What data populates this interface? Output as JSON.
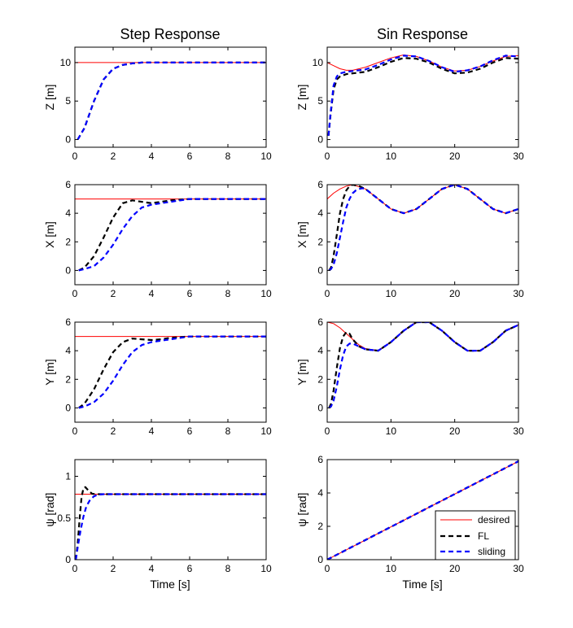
{
  "titles": {
    "left": "Step Response",
    "right": "Sin Response"
  },
  "xlabel": "Time [s]",
  "legend": [
    "desired",
    "FL",
    "sliding"
  ],
  "colors": {
    "desired": "#ff0000",
    "FL": "#000000",
    "sliding": "#0000ff"
  },
  "chart_data": [
    {
      "type": "line",
      "panel": "step-z",
      "ylabel": "Z [m]",
      "xlim": [
        0,
        10
      ],
      "ylim": [
        -1,
        12
      ],
      "xticks": [
        0,
        2,
        4,
        6,
        8,
        10
      ],
      "yticks": [
        0,
        5,
        10
      ],
      "series": [
        {
          "name": "desired",
          "style": "solid",
          "x": [
            0,
            10
          ],
          "y": [
            10,
            10
          ]
        },
        {
          "name": "FL",
          "style": "dashed",
          "x": [
            0.15,
            0.5,
            1.0,
            1.5,
            2.0,
            2.5,
            3.0,
            3.5,
            4.0,
            5.0,
            6.0,
            8.0,
            10.0
          ],
          "y": [
            0,
            1.5,
            5.0,
            7.8,
            9.2,
            9.7,
            9.9,
            10.0,
            10.0,
            10.0,
            10.0,
            10.0,
            10.0
          ]
        },
        {
          "name": "sliding",
          "style": "dashed",
          "x": [
            0.15,
            0.5,
            1.0,
            1.5,
            2.0,
            2.5,
            3.0,
            3.5,
            4.0,
            5.0,
            6.0,
            8.0,
            10.0
          ],
          "y": [
            0,
            1.5,
            5.0,
            7.8,
            9.2,
            9.7,
            9.9,
            10.0,
            10.0,
            10.0,
            10.0,
            10.0,
            10.0
          ]
        }
      ]
    },
    {
      "type": "line",
      "panel": "sin-z",
      "ylabel": "Z [m]",
      "xlim": [
        0,
        30
      ],
      "ylim": [
        -1,
        12
      ],
      "xticks": [
        0,
        10,
        20,
        30
      ],
      "yticks": [
        0,
        5,
        10
      ],
      "series": [
        {
          "name": "desired",
          "style": "solid",
          "x": [
            0,
            1,
            2,
            3,
            4,
            6,
            8,
            10,
            12,
            14,
            16,
            18,
            20,
            22,
            24,
            26,
            28,
            30
          ],
          "y": [
            10,
            9.6,
            9.2,
            9.0,
            9.0,
            9.4,
            10.0,
            10.6,
            11.0,
            10.8,
            10.2,
            9.4,
            8.9,
            9.0,
            9.5,
            10.2,
            10.8,
            10.9
          ]
        },
        {
          "name": "FL",
          "style": "dashed",
          "x": [
            0.2,
            0.5,
            1.0,
            1.5,
            2,
            3,
            4,
            6,
            8,
            10,
            12,
            14,
            16,
            18,
            20,
            22,
            24,
            26,
            28,
            30
          ],
          "y": [
            0.5,
            3.0,
            6.5,
            7.8,
            8.2,
            8.5,
            8.6,
            8.8,
            9.4,
            10.1,
            10.6,
            10.5,
            10.0,
            9.2,
            8.6,
            8.7,
            9.2,
            10.0,
            10.6,
            10.5
          ]
        },
        {
          "name": "sliding",
          "style": "dashed",
          "x": [
            0.2,
            0.5,
            1.0,
            1.5,
            2,
            3,
            4,
            6,
            8,
            10,
            12,
            14,
            16,
            18,
            20,
            22,
            24,
            26,
            28,
            30
          ],
          "y": [
            0.5,
            3.2,
            7.0,
            8.2,
            8.6,
            8.8,
            8.9,
            9.1,
            9.7,
            10.4,
            10.9,
            10.8,
            10.2,
            9.4,
            8.8,
            9.0,
            9.5,
            10.3,
            10.9,
            10.8
          ]
        }
      ]
    },
    {
      "type": "line",
      "panel": "step-x",
      "ylabel": "X [m]",
      "xlim": [
        0,
        10
      ],
      "ylim": [
        -1,
        6
      ],
      "xticks": [
        0,
        2,
        4,
        6,
        8,
        10
      ],
      "yticks": [
        0,
        2,
        4,
        6
      ],
      "series": [
        {
          "name": "desired",
          "style": "solid",
          "x": [
            0,
            10
          ],
          "y": [
            5,
            5
          ]
        },
        {
          "name": "FL",
          "style": "dashed",
          "x": [
            0.2,
            0.5,
            1.0,
            1.5,
            2.0,
            2.5,
            3.0,
            3.5,
            4.0,
            4.5,
            5.0,
            6.0,
            8.0,
            10.0
          ],
          "y": [
            0,
            0.2,
            1.0,
            2.3,
            3.7,
            4.7,
            4.9,
            4.8,
            4.7,
            4.8,
            4.9,
            5.0,
            5.0,
            5.0
          ]
        },
        {
          "name": "sliding",
          "style": "dashed",
          "x": [
            0.2,
            0.5,
            1.0,
            1.5,
            2.0,
            2.5,
            3.0,
            3.5,
            4.0,
            4.5,
            5.0,
            6.0,
            8.0,
            10.0
          ],
          "y": [
            0,
            0.1,
            0.3,
            0.9,
            1.8,
            2.9,
            3.8,
            4.4,
            4.6,
            4.7,
            4.8,
            5.0,
            5.0,
            5.0
          ]
        }
      ]
    },
    {
      "type": "line",
      "panel": "sin-x",
      "ylabel": "X [m]",
      "xlim": [
        0,
        30
      ],
      "ylim": [
        -1,
        6
      ],
      "xticks": [
        0,
        10,
        20,
        30
      ],
      "yticks": [
        0,
        2,
        4,
        6
      ],
      "series": [
        {
          "name": "desired",
          "style": "solid",
          "x": [
            0,
            1,
            2,
            3,
            4,
            6,
            8,
            10,
            12,
            14,
            16,
            18,
            20,
            22,
            24,
            26,
            28,
            30
          ],
          "y": [
            5.0,
            5.4,
            5.7,
            5.9,
            6.0,
            5.7,
            5.0,
            4.3,
            4.0,
            4.3,
            5.0,
            5.7,
            6.0,
            5.7,
            5.0,
            4.3,
            4.0,
            4.3
          ]
        },
        {
          "name": "FL",
          "style": "dashed",
          "x": [
            0.3,
            0.6,
            1.0,
            1.5,
            2.0,
            2.5,
            3.0,
            3.5,
            4.0,
            5.0,
            6.0,
            8.0,
            10,
            12,
            14,
            16,
            18,
            20,
            22,
            24,
            26,
            28,
            30
          ],
          "y": [
            0,
            0.2,
            1.0,
            2.5,
            4.0,
            5.0,
            5.6,
            5.9,
            6.0,
            5.9,
            5.7,
            5.0,
            4.3,
            4.0,
            4.3,
            5.0,
            5.7,
            6.0,
            5.7,
            5.0,
            4.3,
            4.0,
            4.3
          ]
        },
        {
          "name": "sliding",
          "style": "dashed",
          "x": [
            0.3,
            0.6,
            1.0,
            1.5,
            2.0,
            2.5,
            3.0,
            3.5,
            4.0,
            4.5,
            5.0,
            5.5,
            6.0,
            8.0,
            10,
            12,
            14,
            16,
            18,
            20,
            22,
            24,
            26,
            28,
            30
          ],
          "y": [
            0,
            0.1,
            0.4,
            1.2,
            2.3,
            3.4,
            4.4,
            5.0,
            5.4,
            5.6,
            5.7,
            5.75,
            5.7,
            5.0,
            4.3,
            4.0,
            4.3,
            5.0,
            5.7,
            6.0,
            5.7,
            5.0,
            4.3,
            4.0,
            4.3
          ]
        }
      ]
    },
    {
      "type": "line",
      "panel": "step-y",
      "ylabel": "Y [m]",
      "xlim": [
        0,
        10
      ],
      "ylim": [
        -1,
        6
      ],
      "xticks": [
        0,
        2,
        4,
        6,
        8,
        10
      ],
      "yticks": [
        0,
        2,
        4,
        6
      ],
      "series": [
        {
          "name": "desired",
          "style": "solid",
          "x": [
            0,
            10
          ],
          "y": [
            5,
            5
          ]
        },
        {
          "name": "FL",
          "style": "dashed",
          "x": [
            0.2,
            0.5,
            1.0,
            1.5,
            2.0,
            2.5,
            3.0,
            3.5,
            4.0,
            4.5,
            5.0,
            6.0,
            8.0,
            10.0
          ],
          "y": [
            0,
            0.3,
            1.3,
            2.7,
            3.9,
            4.6,
            4.85,
            4.8,
            4.75,
            4.8,
            4.9,
            5.0,
            5.0,
            5.0
          ]
        },
        {
          "name": "sliding",
          "style": "dashed",
          "x": [
            0.2,
            0.5,
            1.0,
            1.5,
            2.0,
            2.5,
            3.0,
            3.5,
            4.0,
            4.5,
            5.0,
            6.0,
            8.0,
            10.0
          ],
          "y": [
            0,
            0.1,
            0.4,
            1.0,
            1.9,
            3.0,
            3.9,
            4.4,
            4.6,
            4.7,
            4.8,
            5.0,
            5.0,
            5.0
          ]
        }
      ]
    },
    {
      "type": "line",
      "panel": "sin-y",
      "ylabel": "Y [m]",
      "xlim": [
        0,
        30
      ],
      "ylim": [
        -1,
        6
      ],
      "xticks": [
        0,
        10,
        20,
        30
      ],
      "yticks": [
        0,
        2,
        4,
        6
      ],
      "series": [
        {
          "name": "desired",
          "style": "solid",
          "x": [
            0,
            1,
            2,
            3,
            4,
            5,
            6,
            8,
            10,
            12,
            14,
            16,
            18,
            20,
            22,
            24,
            26,
            28,
            30
          ],
          "y": [
            6.0,
            5.9,
            5.6,
            5.2,
            4.8,
            4.4,
            4.15,
            4.0,
            4.6,
            5.4,
            6.0,
            6.0,
            5.4,
            4.6,
            4.0,
            4.0,
            4.6,
            5.4,
            5.8
          ]
        },
        {
          "name": "FL",
          "style": "dashed",
          "x": [
            0.3,
            0.6,
            1.0,
            1.5,
            2.0,
            2.5,
            3.0,
            3.5,
            4.0,
            5.0,
            6.0,
            8.0,
            10,
            12,
            14,
            16,
            18,
            20,
            22,
            24,
            26,
            28,
            30
          ],
          "y": [
            0,
            0.3,
            1.2,
            2.8,
            4.2,
            5.0,
            5.3,
            5.2,
            4.8,
            4.3,
            4.1,
            4.0,
            4.6,
            5.4,
            6.0,
            6.0,
            5.4,
            4.6,
            4.0,
            4.0,
            4.6,
            5.4,
            5.8
          ]
        },
        {
          "name": "sliding",
          "style": "dashed",
          "x": [
            0.3,
            0.6,
            1.0,
            1.5,
            2.0,
            2.5,
            3.0,
            3.5,
            4.0,
            4.5,
            5.0,
            6.0,
            8.0,
            10,
            12,
            14,
            16,
            18,
            20,
            22,
            24,
            26,
            28,
            30
          ],
          "y": [
            0,
            0.1,
            0.5,
            1.5,
            2.7,
            3.7,
            4.3,
            4.5,
            4.5,
            4.4,
            4.3,
            4.1,
            4.0,
            4.6,
            5.4,
            6.0,
            6.0,
            5.4,
            4.6,
            4.0,
            4.0,
            4.6,
            5.4,
            5.8
          ]
        }
      ]
    },
    {
      "type": "line",
      "panel": "step-psi",
      "ylabel": "ψ [rad]",
      "xlim": [
        0,
        10
      ],
      "ylim": [
        0,
        1.2
      ],
      "xticks": [
        0,
        2,
        4,
        6,
        8,
        10
      ],
      "yticks": [
        0,
        0.5,
        1
      ],
      "series": [
        {
          "name": "desired",
          "style": "solid",
          "x": [
            0,
            10
          ],
          "y": [
            0.785,
            0.785
          ]
        },
        {
          "name": "FL",
          "style": "dashed",
          "x": [
            0.05,
            0.15,
            0.25,
            0.35,
            0.45,
            0.55,
            0.7,
            0.9,
            1.1,
            1.5,
            2.0,
            4.0,
            10.0
          ],
          "y": [
            0.0,
            0.2,
            0.5,
            0.75,
            0.86,
            0.87,
            0.83,
            0.79,
            0.785,
            0.785,
            0.785,
            0.785,
            0.785
          ]
        },
        {
          "name": "sliding",
          "style": "dashed",
          "x": [
            0.05,
            0.15,
            0.3,
            0.45,
            0.6,
            0.8,
            1.0,
            1.2,
            1.5,
            2.0,
            4.0,
            10.0
          ],
          "y": [
            0.0,
            0.15,
            0.35,
            0.52,
            0.64,
            0.72,
            0.76,
            0.78,
            0.785,
            0.785,
            0.785,
            0.785
          ]
        }
      ]
    },
    {
      "type": "line",
      "panel": "sin-psi",
      "ylabel": "ψ [rad]",
      "xlim": [
        0,
        30
      ],
      "ylim": [
        0,
        6
      ],
      "xticks": [
        0,
        10,
        20,
        30
      ],
      "yticks": [
        0,
        2,
        4,
        6
      ],
      "series": [
        {
          "name": "desired",
          "style": "solid",
          "x": [
            0,
            30
          ],
          "y": [
            0,
            5.9
          ]
        },
        {
          "name": "FL",
          "style": "dashed",
          "x": [
            0,
            30
          ],
          "y": [
            0,
            5.9
          ]
        },
        {
          "name": "sliding",
          "style": "dashed",
          "x": [
            0,
            30
          ],
          "y": [
            0,
            5.9
          ]
        }
      ]
    }
  ]
}
